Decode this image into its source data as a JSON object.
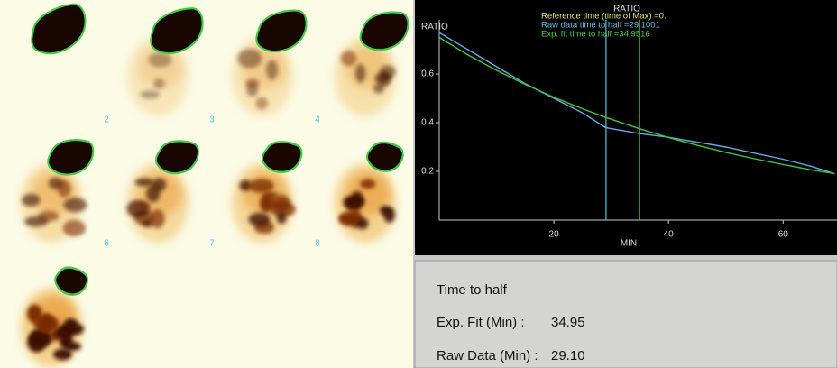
{
  "frames": {
    "labels": [
      "2",
      "3",
      "4",
      "6",
      "7",
      "8"
    ]
  },
  "chart": {
    "type": "line",
    "title": "RATIO",
    "y_label": "RATIO",
    "x_label": "MIN",
    "annotations": [
      {
        "text": "Reference time (time of Max) =0.",
        "color": "#e8e85a"
      },
      {
        "text": "Raw data time to half =29.1001",
        "color": "#5ac8e8"
      },
      {
        "text": "Exp. fit time to half =34.9516",
        "color": "#4cd04c"
      }
    ],
    "x": [
      0,
      5,
      10,
      15,
      20,
      25,
      29,
      35,
      40,
      45,
      50,
      55,
      60,
      65,
      69
    ],
    "series": [
      {
        "color": "#6aa8e8",
        "values": [
          0.77,
          0.7,
          0.63,
          0.56,
          0.5,
          0.44,
          0.38,
          0.355,
          0.34,
          0.32,
          0.3,
          0.275,
          0.25,
          0.22,
          0.19
        ]
      },
      {
        "color": "#3cc83c",
        "values": [
          0.75,
          0.678,
          0.615,
          0.557,
          0.504,
          0.457,
          0.422,
          0.375,
          0.339,
          0.307,
          0.278,
          0.252,
          0.228,
          0.206,
          0.191
        ]
      }
    ],
    "vlines": [
      {
        "x": 29.1001,
        "color": "#4cc8e8"
      },
      {
        "x": 34.9516,
        "color": "#3ad03a"
      }
    ],
    "xlim": [
      0,
      69.4
    ],
    "ylim": [
      0,
      0.8
    ],
    "xticks": [
      20,
      40,
      60
    ],
    "yticks": [
      0.2,
      0.4,
      0.6
    ]
  },
  "results": {
    "title": "Time to half",
    "rows": [
      [
        "Exp. Fit (Min) :",
        "34.95"
      ],
      [
        "Raw Data (Min) :",
        "29.10"
      ]
    ]
  }
}
